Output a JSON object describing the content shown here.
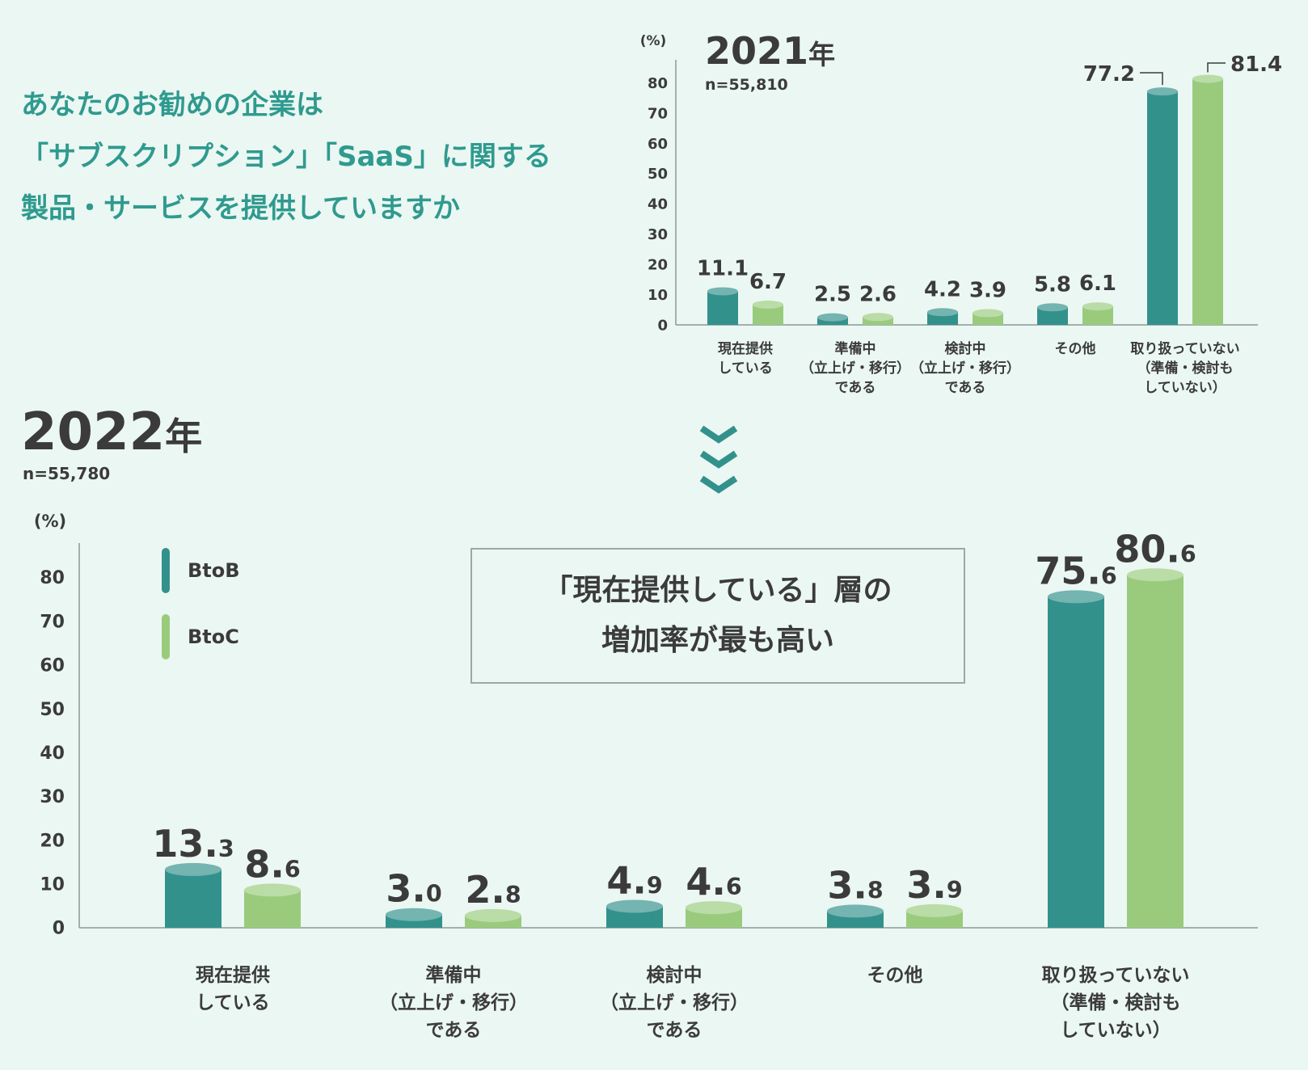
{
  "question": {
    "lines": [
      "あなたのお勧めの企業は",
      "「サブスクリプション」「SaaS」に関する",
      "製品・サービスを提供していますか"
    ]
  },
  "colors": {
    "btob": "#33918c",
    "btoc": "#9acb7d",
    "axis": "#8a9a96",
    "text": "#3b3b3b",
    "title": "#2f9a8f"
  },
  "legend": {
    "btob_label": "BtoB",
    "btoc_label": "BtoC"
  },
  "callout": {
    "lines": [
      "「現在提供している」層の",
      "増加率が最も高い"
    ]
  },
  "arrow_icon": "triple-chevron-down-icon",
  "chart_data": [
    {
      "type": "bar",
      "title": "2021年",
      "title_number": "2021",
      "title_unit": "年",
      "n_label": "n=55,810",
      "ylabel": "(%)",
      "ylim": [
        0,
        85
      ],
      "yticks": [
        0,
        10,
        20,
        30,
        40,
        50,
        60,
        70,
        80
      ],
      "categories": [
        [
          "現在提供",
          "している"
        ],
        [
          "準備中",
          "（立上げ・移行）",
          "である"
        ],
        [
          "検討中",
          "（立上げ・移行）",
          "である"
        ],
        [
          "その他"
        ],
        [
          "取り扱っていない",
          "（準備・検討も",
          "していない）"
        ]
      ],
      "series": [
        {
          "name": "BtoB",
          "values": [
            11.1,
            2.5,
            4.2,
            5.8,
            77.2
          ],
          "labels": [
            "11.1",
            "2.5",
            "4.2",
            "5.8",
            "77.2"
          ]
        },
        {
          "name": "BtoC",
          "values": [
            6.7,
            2.6,
            3.9,
            6.1,
            81.4
          ],
          "labels": [
            "6.7",
            "2.6",
            "3.9",
            "6.1",
            "81.4"
          ]
        }
      ]
    },
    {
      "type": "bar",
      "title": "2022年",
      "title_number": "2022",
      "title_unit": "年",
      "n_label": "n=55,780",
      "ylabel": "(%)",
      "ylim": [
        0,
        86
      ],
      "yticks": [
        0,
        10,
        20,
        30,
        40,
        50,
        60,
        70,
        80
      ],
      "legend_position": "top-left",
      "categories": [
        [
          "現在提供",
          "している"
        ],
        [
          "準備中",
          "（立上げ・移行）",
          "である"
        ],
        [
          "検討中",
          "（立上げ・移行）",
          "である"
        ],
        [
          "その他"
        ],
        [
          "取り扱っていない",
          "（準備・検討も",
          "していない）"
        ]
      ],
      "series": [
        {
          "name": "BtoB",
          "values": [
            13.3,
            3.0,
            4.9,
            3.8,
            75.6
          ],
          "labels": [
            "13.3",
            "3.0",
            "4.9",
            "3.8",
            "75.6"
          ]
        },
        {
          "name": "BtoC",
          "values": [
            8.6,
            2.8,
            4.6,
            3.9,
            80.6
          ],
          "labels": [
            "8.6",
            "2.8",
            "4.6",
            "3.9",
            "80.6"
          ]
        }
      ]
    }
  ]
}
